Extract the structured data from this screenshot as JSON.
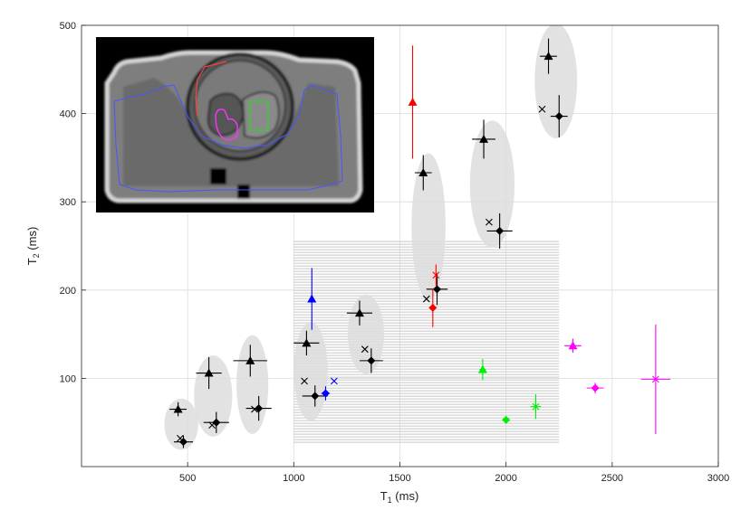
{
  "chart_data": {
    "type": "scatter",
    "title": "",
    "xlabel_main": "T",
    "xlabel_sub": "1",
    "xlabel_unit": " (ms)",
    "ylabel_main": "T",
    "ylabel_sub": "2",
    "ylabel_unit": " (ms)",
    "xlim": [
      0,
      3000
    ],
    "ylim": [
      0,
      500
    ],
    "xticks": [
      "500",
      "1000",
      "1500",
      "2000",
      "2500",
      "3000"
    ],
    "yticks": [
      "100",
      "200",
      "300",
      "400",
      "500"
    ],
    "xtick_values": [
      500,
      1000,
      1500,
      2000,
      2500,
      3000
    ],
    "ytick_values": [
      100,
      200,
      300,
      400,
      500
    ],
    "grid": true,
    "inset": "MR image of phantom with outlined regions (top-left)",
    "shaded_region": {
      "x": [
        1000,
        2250
      ],
      "y": [
        25,
        255
      ],
      "color": "#c8c8c8"
    },
    "ellipses": [
      {
        "cx": 470,
        "cy": 48,
        "rx": 80,
        "ry": 29
      },
      {
        "cx": 620,
        "cy": 80,
        "rx": 90,
        "ry": 46
      },
      {
        "cx": 805,
        "cy": 93,
        "rx": 75,
        "ry": 56
      },
      {
        "cx": 1080,
        "cy": 108,
        "rx": 80,
        "ry": 56
      },
      {
        "cx": 1340,
        "cy": 150,
        "rx": 85,
        "ry": 45
      },
      {
        "cx": 1635,
        "cy": 272,
        "rx": 80,
        "ry": 83
      },
      {
        "cx": 1935,
        "cy": 320,
        "rx": 105,
        "ry": 72
      },
      {
        "cx": 2235,
        "cy": 437,
        "rx": 100,
        "ry": 65
      }
    ],
    "series": [
      {
        "color": "#000000",
        "points": [
          {
            "x": 455,
            "y": 65,
            "m": "triangle",
            "ex": 40,
            "ey": 8
          },
          {
            "x": 480,
            "y": 28,
            "m": "diamond",
            "ex": 45,
            "ey": 7
          },
          {
            "x": 465,
            "y": 32,
            "m": "x"
          },
          {
            "x": 600,
            "y": 106,
            "m": "triangle",
            "ex": 60,
            "ey": 18
          },
          {
            "x": 635,
            "y": 50,
            "m": "diamond",
            "ex": 60,
            "ey": 12
          },
          {
            "x": 615,
            "y": 47,
            "m": "x"
          },
          {
            "x": 795,
            "y": 120,
            "m": "triangle",
            "ex": 80,
            "ey": 18
          },
          {
            "x": 835,
            "y": 66,
            "m": "diamond",
            "ex": 60,
            "ey": 14
          },
          {
            "x": 815,
            "y": 65,
            "m": "x"
          },
          {
            "x": 1060,
            "y": 140,
            "m": "triangle",
            "ex": 60,
            "ey": 14
          },
          {
            "x": 1100,
            "y": 80,
            "m": "diamond",
            "ex": 60,
            "ey": 12
          },
          {
            "x": 1050,
            "y": 97,
            "m": "x"
          },
          {
            "x": 1310,
            "y": 174,
            "m": "triangle",
            "ex": 60,
            "ey": 14
          },
          {
            "x": 1365,
            "y": 120,
            "m": "diamond",
            "ex": 55,
            "ey": 14
          },
          {
            "x": 1335,
            "y": 133,
            "m": "x"
          },
          {
            "x": 1610,
            "y": 333,
            "m": "triangle",
            "ex": 40,
            "ey": 20
          },
          {
            "x": 1675,
            "y": 201,
            "m": "diamond",
            "ex": 50,
            "ey": 18
          },
          {
            "x": 1625,
            "y": 190,
            "m": "x"
          },
          {
            "x": 1895,
            "y": 371,
            "m": "triangle",
            "ex": 55,
            "ey": 22
          },
          {
            "x": 1970,
            "y": 267,
            "m": "diamond",
            "ex": 60,
            "ey": 20
          },
          {
            "x": 1920,
            "y": 277,
            "m": "x"
          },
          {
            "x": 2200,
            "y": 465,
            "m": "triangle",
            "ex": 40,
            "ey": 20
          },
          {
            "x": 2250,
            "y": 397,
            "m": "diamond",
            "ex": 40,
            "ey": 24
          },
          {
            "x": 2170,
            "y": 405,
            "m": "x"
          }
        ]
      },
      {
        "color": "#0000ff",
        "points": [
          {
            "x": 1085,
            "y": 190,
            "m": "triangle",
            "ey": 35
          },
          {
            "x": 1150,
            "y": 83,
            "m": "diamond",
            "ex": 20,
            "ey": 8
          },
          {
            "x": 1190,
            "y": 97,
            "m": "x"
          }
        ]
      },
      {
        "color": "#ff0000",
        "points": [
          {
            "x": 1560,
            "y": 413,
            "m": "triangle",
            "ey": 64
          },
          {
            "x": 1655,
            "y": 180,
            "m": "diamond",
            "ey": 22
          },
          {
            "x": 1670,
            "y": 217,
            "m": "x",
            "ey": 12
          }
        ]
      },
      {
        "color": "#00ee00",
        "points": [
          {
            "x": 1890,
            "y": 110,
            "m": "triangle",
            "ex": 15,
            "ey": 12
          },
          {
            "x": 2000,
            "y": 53,
            "m": "diamond",
            "ex": 15
          },
          {
            "x": 2140,
            "y": 68,
            "m": "x",
            "ex": 25,
            "ey": 14
          }
        ]
      },
      {
        "color": "#ff00ff",
        "points": [
          {
            "x": 2315,
            "y": 137,
            "m": "triangle",
            "ex": 40,
            "ey": 8
          },
          {
            "x": 2420,
            "y": 89,
            "m": "diamond",
            "ex": 40,
            "ey": 6
          },
          {
            "x": 2705,
            "y": 99,
            "m": "x",
            "ex": 70,
            "ey": 62
          }
        ]
      }
    ]
  }
}
